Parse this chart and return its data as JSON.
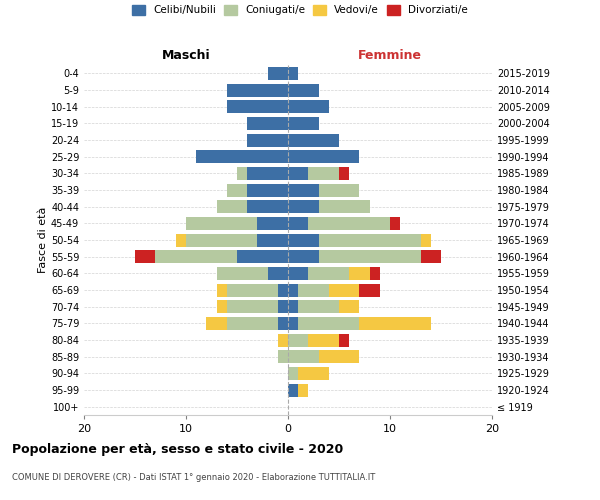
{
  "age_groups": [
    "100+",
    "95-99",
    "90-94",
    "85-89",
    "80-84",
    "75-79",
    "70-74",
    "65-69",
    "60-64",
    "55-59",
    "50-54",
    "45-49",
    "40-44",
    "35-39",
    "30-34",
    "25-29",
    "20-24",
    "15-19",
    "10-14",
    "5-9",
    "0-4"
  ],
  "birth_years": [
    "≤ 1919",
    "1920-1924",
    "1925-1929",
    "1930-1934",
    "1935-1939",
    "1940-1944",
    "1945-1949",
    "1950-1954",
    "1955-1959",
    "1960-1964",
    "1965-1969",
    "1970-1974",
    "1975-1979",
    "1980-1984",
    "1985-1989",
    "1990-1994",
    "1995-1999",
    "2000-2004",
    "2005-2009",
    "2010-2014",
    "2015-2019"
  ],
  "colors": {
    "celibi": "#3d6fa5",
    "coniugati": "#b5c9a0",
    "vedovi": "#f5c842",
    "divorziati": "#cc2222"
  },
  "males": {
    "celibi": [
      0,
      0,
      0,
      0,
      0,
      1,
      1,
      1,
      2,
      5,
      3,
      3,
      4,
      4,
      4,
      9,
      4,
      4,
      6,
      6,
      2
    ],
    "coniugati": [
      0,
      0,
      0,
      1,
      0,
      5,
      5,
      5,
      5,
      8,
      7,
      7,
      3,
      2,
      1,
      0,
      0,
      0,
      0,
      0,
      0
    ],
    "vedovi": [
      0,
      0,
      0,
      0,
      1,
      2,
      1,
      1,
      0,
      0,
      1,
      0,
      0,
      0,
      0,
      0,
      0,
      0,
      0,
      0,
      0
    ],
    "divorziati": [
      0,
      0,
      0,
      0,
      0,
      0,
      0,
      0,
      0,
      2,
      0,
      0,
      0,
      0,
      0,
      0,
      0,
      0,
      0,
      0,
      0
    ]
  },
  "females": {
    "celibi": [
      0,
      1,
      0,
      0,
      0,
      1,
      1,
      1,
      2,
      3,
      3,
      2,
      3,
      3,
      2,
      7,
      5,
      3,
      4,
      3,
      1
    ],
    "coniugati": [
      0,
      0,
      1,
      3,
      2,
      6,
      4,
      3,
      4,
      10,
      10,
      8,
      5,
      4,
      3,
      0,
      0,
      0,
      0,
      0,
      0
    ],
    "vedovi": [
      0,
      1,
      3,
      4,
      3,
      7,
      2,
      3,
      2,
      0,
      1,
      0,
      0,
      0,
      0,
      0,
      0,
      0,
      0,
      0,
      0
    ],
    "divorziati": [
      0,
      0,
      0,
      0,
      1,
      0,
      0,
      2,
      1,
      2,
      0,
      1,
      0,
      0,
      1,
      0,
      0,
      0,
      0,
      0,
      0
    ]
  },
  "xlim": 20,
  "title": "Popolazione per età, sesso e stato civile - 2020",
  "subtitle": "COMUNE DI DEROVERE (CR) - Dati ISTAT 1° gennaio 2020 - Elaborazione TUTTITALIA.IT",
  "ylabel_left": "Fasce di età",
  "xlabel_left": "Maschi",
  "xlabel_right": "Femmine",
  "legend_labels": [
    "Celibi/Nubili",
    "Coniugati/e",
    "Vedovi/e",
    "Divorziati/e"
  ]
}
